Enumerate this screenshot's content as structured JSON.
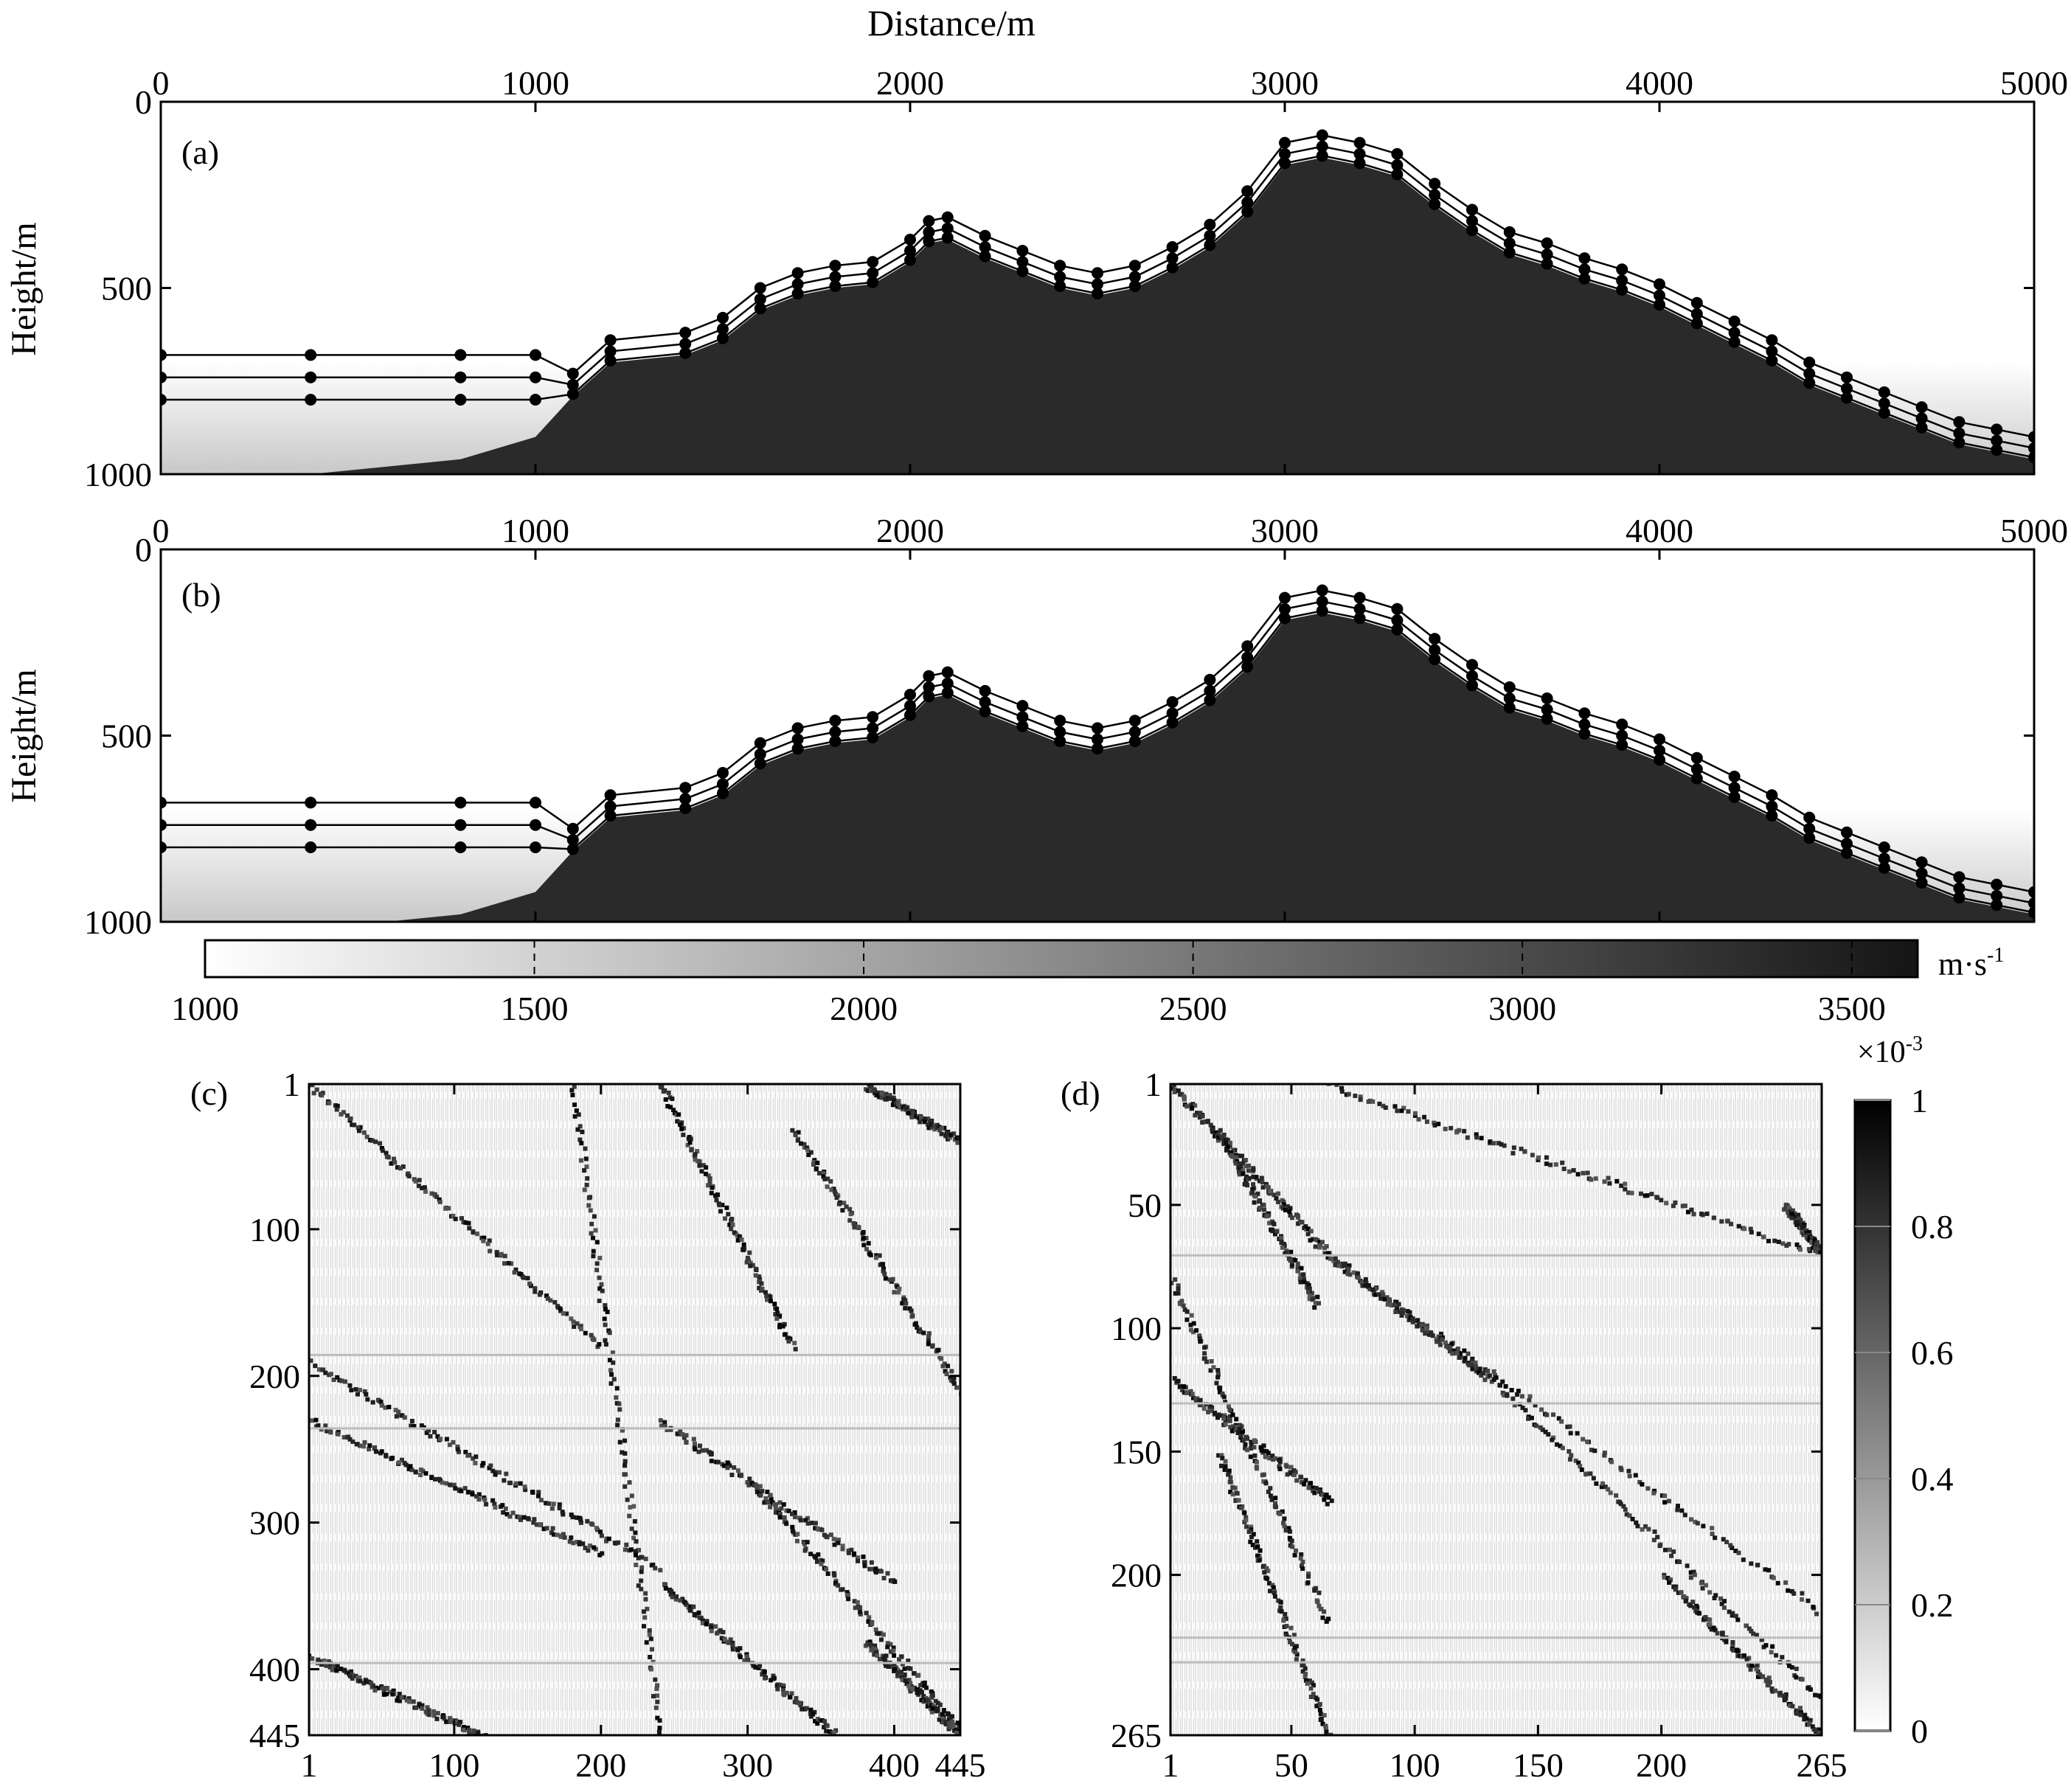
{
  "figure": {
    "top_axis_label": "Distance/m",
    "colorbar_unit": "m·s",
    "colorbar_unit_exp": "-1",
    "matrix_scale_prefix": "×10",
    "matrix_scale_exp": "-3"
  },
  "chart_data": [
    {
      "panel": "(a)",
      "type": "heatmap",
      "description": "velocity model with overlaid refraction ray paths (black dots)",
      "xlabel": "Distance/m",
      "ylabel": "Height/m",
      "xlim": [
        0,
        5000
      ],
      "ylim": [
        1000,
        0
      ],
      "xticks": [
        "0",
        "1000",
        "2000",
        "3000",
        "4000",
        "5000"
      ],
      "yticks": [
        "0",
        "500",
        "1000"
      ],
      "surface_profile": [
        [
          0,
          1000
        ],
        [
          400,
          1000
        ],
        [
          800,
          960
        ],
        [
          1000,
          900
        ],
        [
          1100,
          790
        ],
        [
          1200,
          700
        ],
        [
          1400,
          680
        ],
        [
          1500,
          640
        ],
        [
          1600,
          560
        ],
        [
          1700,
          520
        ],
        [
          1800,
          500
        ],
        [
          1900,
          490
        ],
        [
          2000,
          430
        ],
        [
          2050,
          380
        ],
        [
          2100,
          370
        ],
        [
          2200,
          420
        ],
        [
          2300,
          460
        ],
        [
          2400,
          500
        ],
        [
          2500,
          520
        ],
        [
          2600,
          500
        ],
        [
          2700,
          450
        ],
        [
          2800,
          390
        ],
        [
          2900,
          300
        ],
        [
          3000,
          170
        ],
        [
          3100,
          150
        ],
        [
          3200,
          170
        ],
        [
          3300,
          200
        ],
        [
          3400,
          280
        ],
        [
          3500,
          350
        ],
        [
          3600,
          410
        ],
        [
          3700,
          440
        ],
        [
          3800,
          480
        ],
        [
          3900,
          510
        ],
        [
          4000,
          550
        ],
        [
          4100,
          600
        ],
        [
          4200,
          650
        ],
        [
          4300,
          700
        ],
        [
          4400,
          760
        ],
        [
          4500,
          800
        ],
        [
          4600,
          840
        ],
        [
          4700,
          880
        ],
        [
          4800,
          920
        ],
        [
          4900,
          940
        ],
        [
          5000,
          960
        ]
      ]
    },
    {
      "panel": "(b)",
      "type": "heatmap",
      "description": "velocity model with overlaid refraction ray paths (black dots)",
      "xlabel": "Distance/m",
      "ylabel": "Height/m",
      "xlim": [
        0,
        5000
      ],
      "ylim": [
        1000,
        0
      ],
      "xticks": [
        "0",
        "1000",
        "2000",
        "3000",
        "4000",
        "5000"
      ],
      "yticks": [
        "0",
        "500",
        "1000"
      ],
      "colorbar": {
        "min": 1000,
        "max": 3600,
        "ticks": [
          "1000",
          "1500",
          "2000",
          "2500",
          "3000",
          "3500"
        ]
      }
    },
    {
      "panel": "(c)",
      "type": "heatmap",
      "description": "sensitivity / resolution matrix",
      "xlim": [
        1,
        445
      ],
      "ylim": [
        445,
        1
      ],
      "xticks": [
        "1",
        "100",
        "200",
        "300",
        "400",
        "445"
      ],
      "yticks": [
        "1",
        "100",
        "200",
        "300",
        "400",
        "445"
      ]
    },
    {
      "panel": "(d)",
      "type": "heatmap",
      "description": "sensitivity / resolution matrix",
      "xlim": [
        1,
        265
      ],
      "ylim": [
        265,
        1
      ],
      "xticks": [
        "1",
        "50",
        "100",
        "150",
        "200",
        "265"
      ],
      "yticks": [
        "1",
        "50",
        "100",
        "150",
        "200",
        "265"
      ],
      "colorbar": {
        "min": 0,
        "max": 1,
        "ticks": [
          "0",
          "0.2",
          "0.4",
          "0.6",
          "0.8",
          "1"
        ]
      }
    }
  ]
}
